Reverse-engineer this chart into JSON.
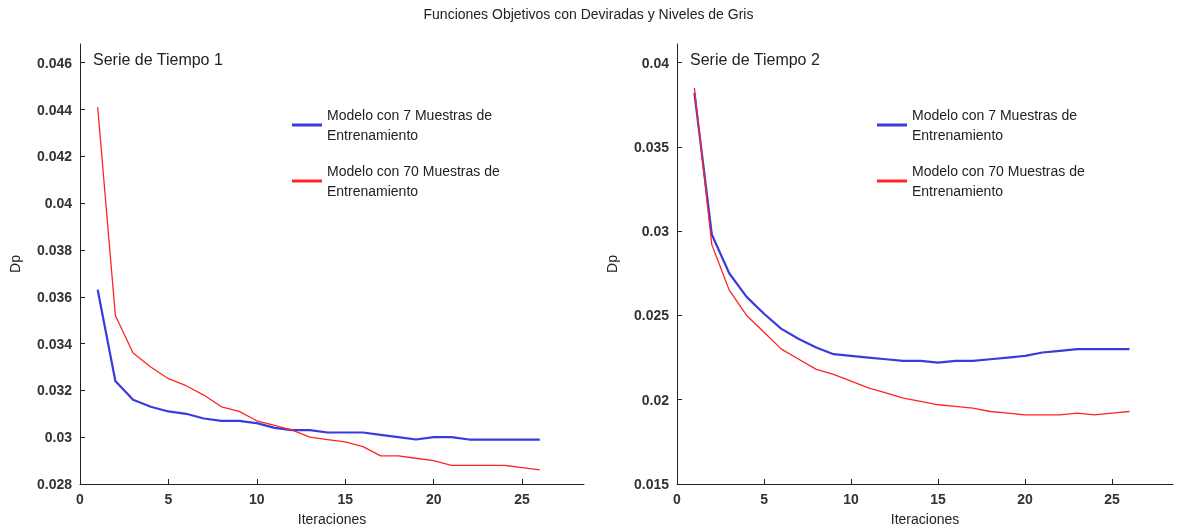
{
  "chart_data": [
    {
      "type": "line",
      "title": "Funciones Objetivos con Deviradas y Niveles de Gris",
      "subtitle": "Serie de Tiempo 1",
      "xlabel": "Iteraciones",
      "ylabel": "Dp",
      "x": [
        1,
        2,
        3,
        4,
        5,
        6,
        7,
        8,
        9,
        10,
        11,
        12,
        13,
        14,
        15,
        16,
        17,
        18,
        19,
        20,
        21,
        22,
        23,
        24,
        25,
        26
      ],
      "series": [
        {
          "name": "Modelo con 7 Muestras de Entrenamiento",
          "color": "#3a3ade",
          "values": [
            0.0363,
            0.0324,
            0.0316,
            0.0313,
            0.0311,
            0.031,
            0.0308,
            0.0307,
            0.0307,
            0.0306,
            0.0304,
            0.0303,
            0.0303,
            0.0302,
            0.0302,
            0.0302,
            0.0301,
            0.03,
            0.0299,
            0.03,
            0.03,
            0.0299,
            0.0299,
            0.0299,
            0.0299,
            0.0299
          ]
        },
        {
          "name": "Modelo con 70 Muestras de Entrenamiento",
          "color": "#ff2424",
          "values": [
            0.0441,
            0.0352,
            0.0336,
            0.033,
            0.0325,
            0.0322,
            0.0318,
            0.0313,
            0.0311,
            0.0307,
            0.0305,
            0.0303,
            0.03,
            0.0299,
            0.0298,
            0.0296,
            0.0292,
            0.0292,
            0.0291,
            0.029,
            0.0288,
            0.0288,
            0.0288,
            0.0288,
            0.0287,
            0.0286
          ]
        }
      ],
      "xlim": [
        0,
        28.5
      ],
      "xticks": [
        0,
        5,
        10,
        15,
        20,
        25
      ],
      "ylim": [
        0.028,
        0.0468
      ],
      "yticks": [
        0.028,
        0.03,
        0.032,
        0.034,
        0.036,
        0.038,
        0.04,
        0.042,
        0.044,
        0.046
      ],
      "grid": false,
      "legend": "top right",
      "marker": "none",
      "line_style": "solid"
    },
    {
      "type": "line",
      "subtitle": "Serie de Tiempo 2",
      "xlabel": "Iteraciones",
      "ylabel": "Dp",
      "x": [
        1,
        2,
        3,
        4,
        5,
        6,
        7,
        8,
        9,
        10,
        11,
        12,
        13,
        14,
        15,
        16,
        17,
        18,
        19,
        20,
        21,
        22,
        23,
        24,
        25,
        26
      ],
      "series": [
        {
          "name": "Modelo con 7 Muestras de Entrenamiento",
          "color": "#3a3ade",
          "values": [
            0.0382,
            0.0298,
            0.0275,
            0.0261,
            0.0251,
            0.0242,
            0.0236,
            0.0231,
            0.0227,
            0.0226,
            0.0225,
            0.0224,
            0.0223,
            0.0223,
            0.0222,
            0.0223,
            0.0223,
            0.0224,
            0.0225,
            0.0226,
            0.0228,
            0.0229,
            0.023,
            0.023,
            0.023,
            0.023
          ]
        },
        {
          "name": "Modelo con 70 Muestras de Entrenamiento",
          "color": "#ff2424",
          "values": [
            0.0385,
            0.0292,
            0.0265,
            0.025,
            0.024,
            0.023,
            0.0224,
            0.0218,
            0.0215,
            0.0211,
            0.0207,
            0.0204,
            0.0201,
            0.0199,
            0.0197,
            0.0196,
            0.0195,
            0.0193,
            0.0192,
            0.0191,
            0.0191,
            0.0191,
            0.0192,
            0.0191,
            0.0192,
            0.0193
          ]
        }
      ],
      "xlim": [
        0,
        28.5
      ],
      "xticks": [
        0,
        5,
        10,
        15,
        20,
        25
      ],
      "ylim": [
        0.015,
        0.0411
      ],
      "yticks": [
        0.015,
        0.02,
        0.025,
        0.03,
        0.035,
        0.04
      ],
      "grid": false,
      "legend": "top right",
      "marker": "none",
      "line_style": "solid"
    }
  ]
}
